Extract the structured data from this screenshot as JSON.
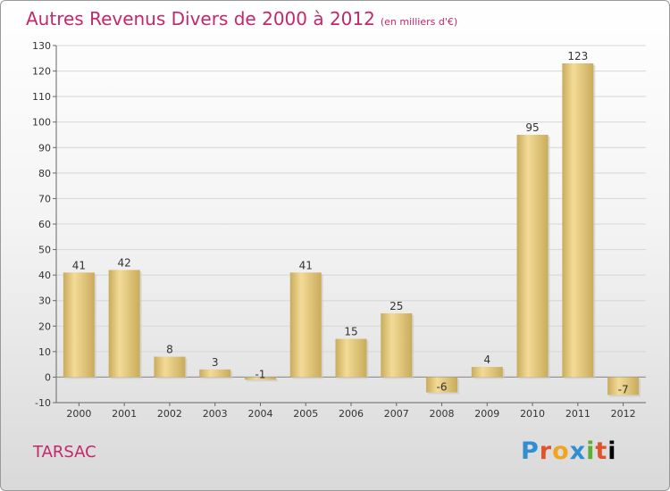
{
  "header": {
    "title": "Autres Revenus Divers de 2000 à 2012",
    "subtitle": "(en milliers d'€)"
  },
  "footer": {
    "commune": "TARSAC",
    "logo": "Proxiti"
  },
  "colors": {
    "title": "#c4276c",
    "bar_light": "#f3db97",
    "bar_dark": "#c9ab5c"
  },
  "chart_data": {
    "type": "bar",
    "title": "Autres Revenus Divers de 2000 à 2012",
    "subtitle": "(en milliers d'€)",
    "categories": [
      "2000",
      "2001",
      "2002",
      "2003",
      "2004",
      "2005",
      "2006",
      "2007",
      "2008",
      "2009",
      "2010",
      "2011",
      "2012"
    ],
    "values": [
      41,
      42,
      8,
      3,
      -1,
      41,
      15,
      25,
      -6,
      4,
      95,
      123,
      -7
    ],
    "ylim": [
      -10,
      130
    ],
    "yticks": [
      -10,
      0,
      10,
      20,
      30,
      40,
      50,
      60,
      70,
      80,
      90,
      100,
      110,
      120,
      130
    ],
    "grid": true,
    "legend": "none"
  }
}
